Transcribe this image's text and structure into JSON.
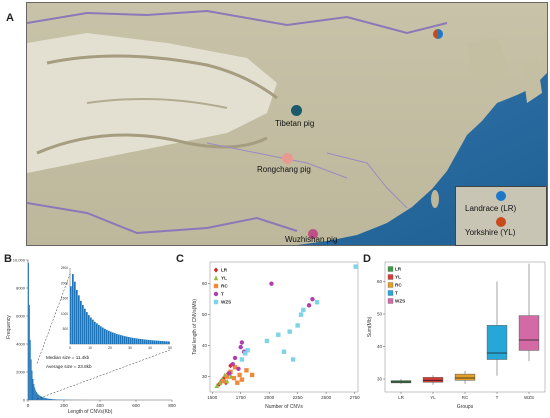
{
  "panels": {
    "a": {
      "letter": "A"
    },
    "b": {
      "letter": "B"
    },
    "c": {
      "letter": "C"
    },
    "d": {
      "letter": "D"
    }
  },
  "map": {
    "sites": [
      {
        "label": "Tibetan pig",
        "color": "#1a5a6a"
      },
      {
        "label": "Rongchang pig",
        "color": "#e89a90"
      },
      {
        "label": "Wuzhishan pig",
        "color": "#c04f88"
      },
      {
        "label": "Landrace (LR)",
        "color": "#1e78c8"
      },
      {
        "label": "Yorkshire (YL)",
        "color": "#c84a1a"
      }
    ]
  },
  "hist": {
    "ylabel": "Frequency",
    "xlabel": "Length of CNVs(Kb)",
    "yticks": [
      "10,000",
      "8000",
      "6000",
      "4000",
      "2000",
      "0"
    ],
    "xticks": [
      "0",
      "200",
      "400",
      "600",
      "800"
    ],
    "inset_yticks": [
      "2500",
      "2000",
      "1500",
      "1000",
      "500"
    ],
    "inset_xticks": [
      "0",
      "10",
      "20",
      "30",
      "40",
      "50"
    ],
    "median_text": "Median size = 11.4kb",
    "average_text": "Average size = 23.8kb",
    "bar_color": "#1f73b7"
  },
  "chart_data": [
    {
      "type": "histogram",
      "xlabel": "Length of CNVs(Kb)",
      "ylabel": "Frequency",
      "xlim": [
        0,
        800
      ],
      "ylim": [
        0,
        10000
      ],
      "bin_width_kb": 5,
      "values": [
        9800,
        6800,
        4300,
        2900,
        2100,
        1500,
        1150,
        900,
        700,
        560,
        470,
        400,
        340,
        300,
        260,
        230,
        200,
        180,
        160,
        140,
        125,
        110,
        100,
        90,
        80,
        72,
        65,
        58,
        52,
        47,
        43,
        39,
        35,
        32,
        29,
        26,
        24,
        22,
        20,
        18,
        16,
        15,
        14,
        13,
        12,
        11,
        10,
        9,
        8,
        7,
        6,
        6,
        5,
        5,
        4,
        4,
        3,
        3,
        3,
        2,
        2,
        2,
        2,
        1,
        1,
        1,
        1,
        1,
        1,
        1
      ],
      "inset": {
        "xlim": [
          0,
          50
        ],
        "ylim": [
          0,
          2500
        ],
        "bin_width_kb": 1,
        "values": [
          1900,
          2300,
          2050,
          1780,
          1600,
          1420,
          1280,
          1160,
          1050,
          950,
          870,
          800,
          730,
          680,
          630,
          580,
          540,
          500,
          465,
          435,
          405,
          380,
          355,
          333,
          312,
          293,
          275,
          258,
          243,
          229,
          216,
          204,
          193,
          183,
          173,
          164,
          156,
          148,
          141,
          134,
          128,
          122,
          116,
          111,
          106,
          101,
          97,
          93,
          89,
          85
        ]
      }
    },
    {
      "type": "scatter",
      "xlabel": "Number of CNVs",
      "ylabel": "Total length of CNVs(Mb)",
      "xlim": [
        1480,
        2780
      ],
      "ylim": [
        25,
        67
      ],
      "xticks": [
        1500,
        1750,
        2000,
        2250,
        2500,
        2750
      ],
      "yticks": [
        30,
        40,
        50,
        60
      ],
      "series": [
        {
          "name": "LR",
          "color": "#d6262b",
          "shape": "diamond",
          "x": [
            1560,
            1580,
            1600,
            1620,
            1640,
            1660
          ],
          "y": [
            27.5,
            28.5,
            29.5,
            28.0,
            31.0,
            33.5
          ]
        },
        {
          "name": "YL",
          "color": "#8cbe3f",
          "shape": "triangle",
          "x": [
            1540,
            1570,
            1590,
            1610,
            1630,
            1650,
            1665
          ],
          "y": [
            27.0,
            28.0,
            29.0,
            30.5,
            28.5,
            31.5,
            30.0
          ]
        },
        {
          "name": "RC",
          "color": "#f08a3a",
          "shape": "square",
          "x": [
            1600,
            1630,
            1660,
            1690,
            1700,
            1720,
            1740,
            1760,
            1800,
            1850
          ],
          "y": [
            28.5,
            30.0,
            31.5,
            29.5,
            33.0,
            28.0,
            30.5,
            29.0,
            32.0,
            30.5
          ]
        },
        {
          "name": "T",
          "color": "#b03fae",
          "shape": "circle",
          "x": [
            1650,
            1680,
            1700,
            1730,
            1750,
            1760,
            1780,
            2020,
            2350,
            2380
          ],
          "y": [
            31.0,
            34.0,
            36.0,
            32.5,
            39.5,
            41.0,
            38.0,
            60.0,
            53.0,
            55.0
          ]
        },
        {
          "name": "WZS",
          "color": "#7cd4e6",
          "shape": "square",
          "x": [
            1760,
            1790,
            1810,
            1980,
            2080,
            2130,
            2180,
            2210,
            2250,
            2280,
            2300,
            2420,
            2760
          ],
          "y": [
            35.5,
            37.5,
            38.5,
            41.5,
            43.5,
            38.0,
            44.5,
            35.5,
            46.5,
            50.0,
            51.5,
            54.0,
            65.5
          ]
        }
      ]
    },
    {
      "type": "boxplot",
      "xlabel": "Groups",
      "ylabel": "Sum(Mb)",
      "ylim": [
        26,
        66
      ],
      "yticks": [
        30,
        40,
        50,
        60
      ],
      "categories": [
        "LR",
        "YL",
        "RC",
        "T",
        "WZS"
      ],
      "boxes": [
        {
          "name": "LR",
          "color": "#3b9b47",
          "min": 28.5,
          "q1": 28.8,
          "median": 29.1,
          "q3": 29.5,
          "max": 30.0
        },
        {
          "name": "YL",
          "color": "#d93a3a",
          "min": 28.2,
          "q1": 29.0,
          "median": 29.6,
          "q3": 30.5,
          "max": 31.2
        },
        {
          "name": "RC",
          "color": "#e2a02a",
          "min": 28.5,
          "q1": 29.6,
          "median": 30.3,
          "q3": 31.5,
          "max": 32.5
        },
        {
          "name": "T",
          "color": "#27a7d7",
          "min": 31.0,
          "q1": 36.0,
          "median": 38.0,
          "q3": 46.5,
          "max": 60.0
        },
        {
          "name": "WZS",
          "color": "#d36aa5",
          "min": 35.5,
          "q1": 38.8,
          "median": 42.0,
          "q3": 49.5,
          "max": 65.5
        }
      ]
    }
  ]
}
